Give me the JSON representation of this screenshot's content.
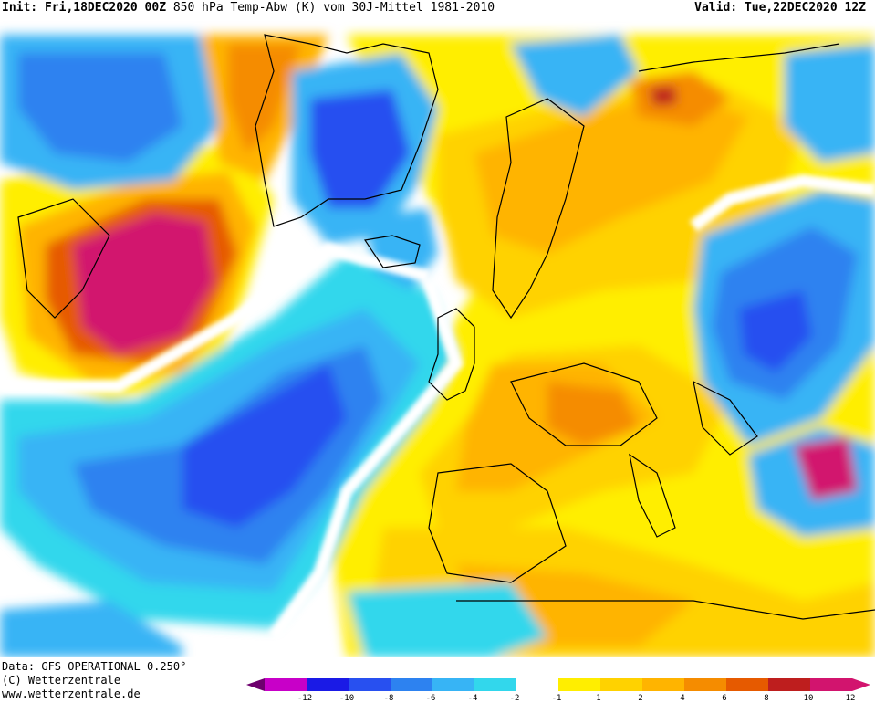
{
  "header": {
    "init_label": "Init:",
    "init_value": "Fri,18DEC2020 00Z",
    "title": "850 hPa Temp-Abw (K) vom 30J-Mittel 1981-2010",
    "valid_label": "Valid:",
    "valid_value": "Tue,22DEC2020 12Z"
  },
  "footer": {
    "data_line": "Data: GFS OPERATIONAL 0.250°",
    "copyright_line": "(C) Wetterzentrale",
    "url_line": "www.wetterzentrale.de"
  },
  "legend": {
    "ticks": [
      "-12",
      "-10",
      "-8",
      "-6",
      "-4",
      "-2",
      "-1",
      "1",
      "2",
      "4",
      "6",
      "8",
      "10",
      "12"
    ],
    "colors": [
      "#c800c8",
      "#1a1ae6",
      "#2850f0",
      "#2d82f0",
      "#37b4f5",
      "#32d7ec",
      "#ffffff",
      "#ffee00",
      "#ffd200",
      "#ffb400",
      "#f58c00",
      "#e65a00",
      "#be1e1e",
      "#d2146e"
    ],
    "arrow_left_color": "#6e006e",
    "arrow_right_color": "#d2146e"
  },
  "map": {
    "background": "#ffffff",
    "warm_core": "#d2146e",
    "cold_core": "#2850f0",
    "coastline_color": "#000000"
  }
}
